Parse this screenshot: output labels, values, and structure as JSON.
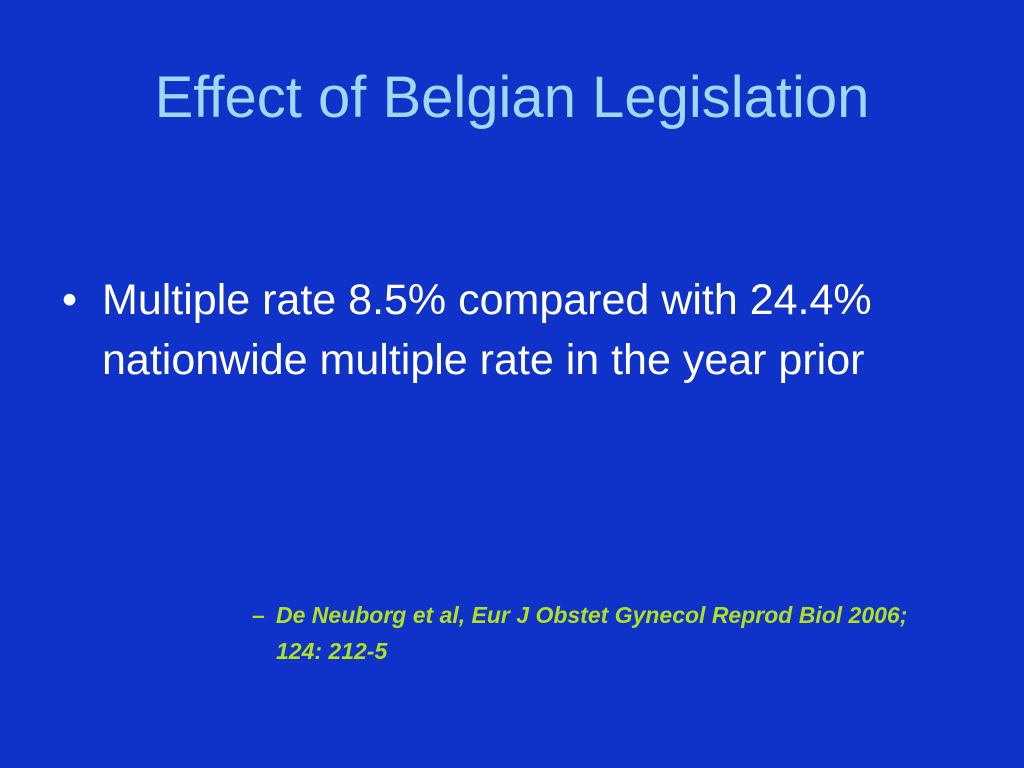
{
  "title": "Effect of Belgian Legislation",
  "bullets": [
    {
      "marker": "•",
      "text": "Multiple rate 8.5% compared with 24.4% nationwide multiple rate in the year prior"
    }
  ],
  "citation": {
    "marker": "–",
    "text": "De Neuborg et al, Eur J Obstet Gynecol Reprod Biol 2006; 124: 212-5"
  }
}
